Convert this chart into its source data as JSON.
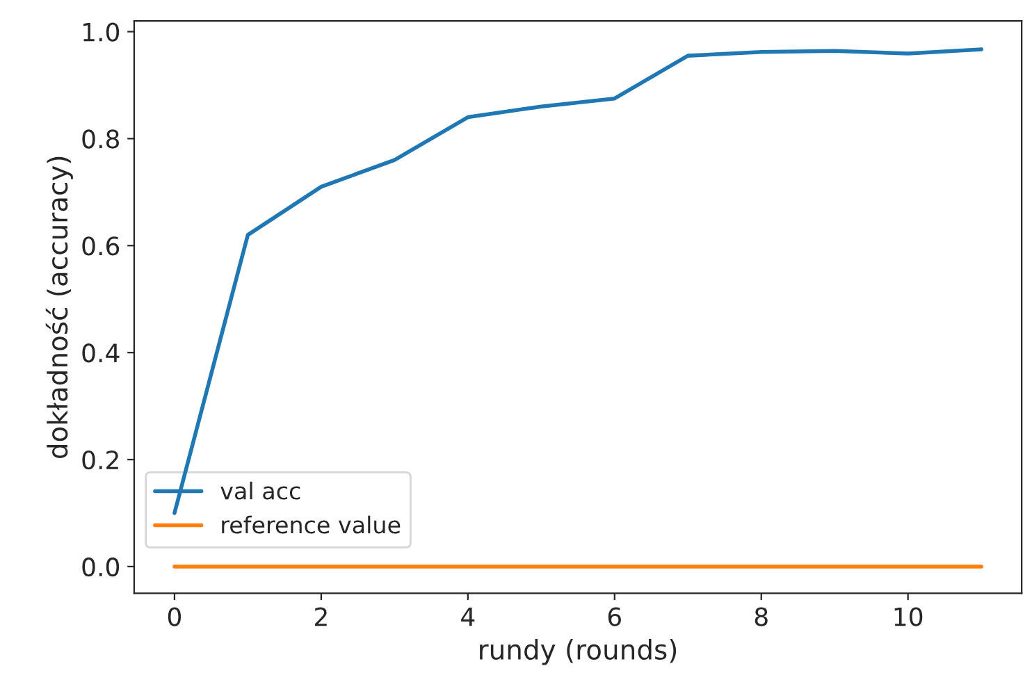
{
  "chart_data": {
    "type": "line",
    "xlabel": "rundy (rounds)",
    "ylabel": "dokładność (accuracy)",
    "x": [
      0,
      1,
      2,
      3,
      4,
      5,
      6,
      7,
      8,
      9,
      10,
      11
    ],
    "series": [
      {
        "name": "val acc",
        "color": "#1f77b4",
        "values": [
          0.1,
          0.62,
          0.71,
          0.76,
          0.84,
          0.86,
          0.875,
          0.955,
          0.962,
          0.964,
          0.959,
          0.967
        ]
      },
      {
        "name": "reference value",
        "color": "#ff7f0e",
        "values": [
          0,
          0,
          0,
          0,
          0,
          0,
          0,
          0,
          0,
          0,
          0,
          0
        ]
      }
    ],
    "xlim": [
      -0.55,
      11.55
    ],
    "ylim": [
      -0.05,
      1.02
    ],
    "xticks": [
      0,
      2,
      4,
      6,
      8,
      10
    ],
    "yticks": [
      {
        "value": 0,
        "label": "0.0"
      },
      {
        "value": 0.2,
        "label": "0.2"
      },
      {
        "value": 0.4,
        "label": "0.4"
      },
      {
        "value": 0.6,
        "label": "0.6"
      },
      {
        "value": 0.8,
        "label": "0.8"
      },
      {
        "value": 1.0,
        "label": "1.0"
      }
    ],
    "grid": false,
    "legend": "bottom left"
  }
}
